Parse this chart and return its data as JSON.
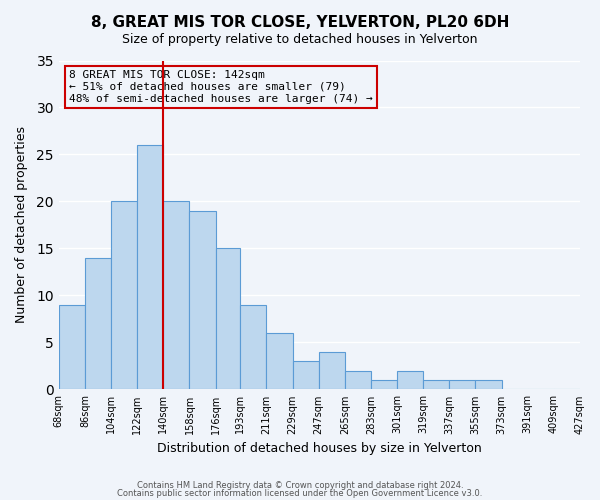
{
  "title": "8, GREAT MIS TOR CLOSE, YELVERTON, PL20 6DH",
  "subtitle": "Size of property relative to detached houses in Yelverton",
  "xlabel": "Distribution of detached houses by size in Yelverton",
  "ylabel": "Number of detached properties",
  "bin_labels": [
    "68sqm",
    "86sqm",
    "104sqm",
    "122sqm",
    "140sqm",
    "158sqm",
    "176sqm",
    "193sqm",
    "211sqm",
    "229sqm",
    "247sqm",
    "265sqm",
    "283sqm",
    "301sqm",
    "319sqm",
    "337sqm",
    "355sqm",
    "373sqm",
    "391sqm",
    "409sqm",
    "427sqm"
  ],
  "bin_edges": [
    68,
    86,
    104,
    122,
    140,
    158,
    176,
    193,
    211,
    229,
    247,
    265,
    283,
    301,
    319,
    337,
    355,
    373,
    391,
    409,
    427
  ],
  "counts": [
    9,
    14,
    20,
    26,
    20,
    19,
    15,
    9,
    6,
    3,
    4,
    2,
    1,
    2,
    1,
    1,
    1,
    0,
    0,
    0
  ],
  "bar_color": "#bdd7ee",
  "bar_edge_color": "#5b9bd5",
  "vline_x": 140,
  "vline_color": "#cc0000",
  "ylim": [
    0,
    35
  ],
  "yticks": [
    0,
    5,
    10,
    15,
    20,
    25,
    30,
    35
  ],
  "annotation_text": "8 GREAT MIS TOR CLOSE: 142sqm\n← 51% of detached houses are smaller (79)\n48% of semi-detached houses are larger (74) →",
  "annotation_box_color": "#cc0000",
  "footer_line1": "Contains HM Land Registry data © Crown copyright and database right 2024.",
  "footer_line2": "Contains public sector information licensed under the Open Government Licence v3.0.",
  "background_color": "#f0f4fa",
  "grid_color": "#ffffff"
}
